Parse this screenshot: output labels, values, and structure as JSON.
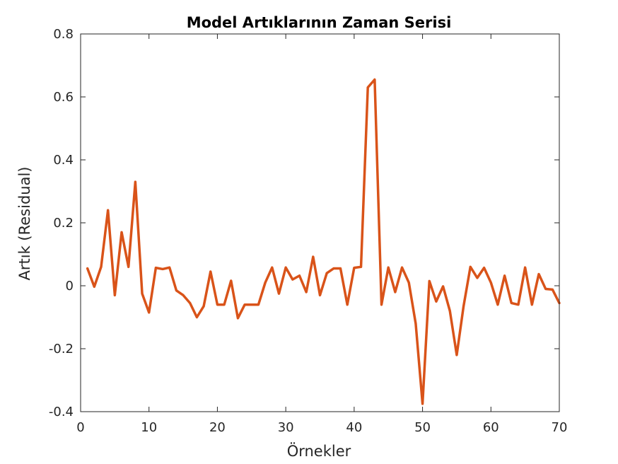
{
  "chart_data": {
    "type": "line",
    "title": "Model Artıklarının Zaman Serisi",
    "xlabel": "Örnekler",
    "ylabel": "Artık (Residual)",
    "xlim": [
      0,
      70
    ],
    "ylim": [
      -0.4,
      0.8
    ],
    "xticks": [
      0,
      10,
      20,
      30,
      40,
      50,
      60,
      70
    ],
    "yticks": [
      -0.4,
      -0.2,
      0,
      0.2,
      0.4,
      0.6,
      0.8
    ],
    "grid": false,
    "legend": "none",
    "series": [
      {
        "color": "#D95319",
        "x": [
          1,
          2,
          3,
          4,
          5,
          6,
          7,
          8,
          9,
          10,
          11,
          12,
          13,
          14,
          15,
          16,
          17,
          18,
          19,
          20,
          21,
          22,
          23,
          24,
          25,
          26,
          27,
          28,
          29,
          30,
          31,
          32,
          33,
          34,
          35,
          36,
          37,
          38,
          39,
          40,
          41,
          42,
          43,
          44,
          45,
          46,
          47,
          48,
          49,
          50,
          51,
          52,
          53,
          54,
          55,
          56,
          57,
          58,
          59,
          60,
          61,
          62,
          63,
          64,
          65,
          66,
          67,
          68,
          69,
          70
        ],
        "y": [
          0.055,
          -0.003,
          0.06,
          0.24,
          -0.03,
          0.17,
          0.06,
          0.33,
          -0.025,
          -0.085,
          0.057,
          0.053,
          0.058,
          -0.015,
          -0.03,
          -0.055,
          -0.1,
          -0.065,
          0.045,
          -0.06,
          -0.06,
          0.016,
          -0.103,
          -0.06,
          -0.06,
          -0.06,
          0.01,
          0.058,
          -0.025,
          0.058,
          0.02,
          0.032,
          -0.02,
          0.092,
          -0.03,
          0.04,
          0.055,
          0.055,
          -0.06,
          0.057,
          0.06,
          0.63,
          0.655,
          -0.06,
          0.058,
          -0.02,
          0.058,
          0.01,
          -0.12,
          -0.375,
          0.015,
          -0.05,
          -0.002,
          -0.08,
          -0.22,
          -0.065,
          0.06,
          0.025,
          0.057,
          0.01,
          -0.06,
          0.032,
          -0.055,
          -0.06,
          0.058,
          -0.06,
          0.037,
          -0.01,
          -0.012,
          -0.055
        ]
      }
    ]
  }
}
